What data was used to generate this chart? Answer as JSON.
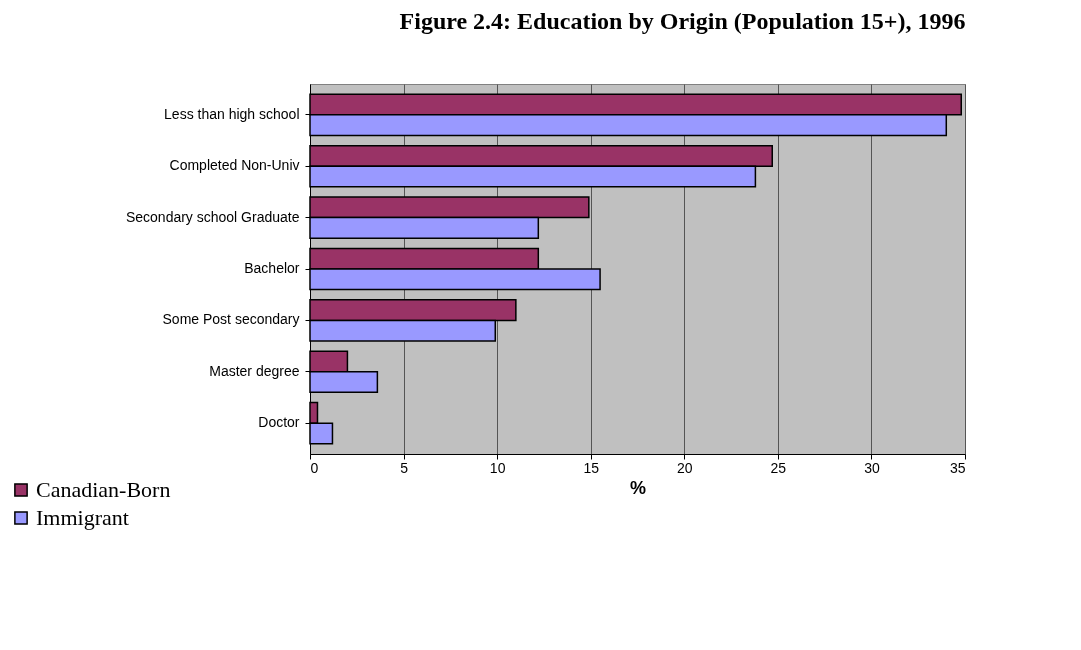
{
  "chart_data": {
    "type": "bar",
    "orientation": "horizontal",
    "title": "Figure 2.4: Education by Origin (Population 15+), 1996",
    "xlabel": "%",
    "categories": [
      "Less than high school",
      "Completed Non-Univ",
      "Secondary school Graduate",
      "Bachelor",
      "Some Post secondary",
      "Master degree",
      "Doctor"
    ],
    "series": [
      {
        "name": "Canadian-Born",
        "color": "#993366",
        "values": [
          34.8,
          24.7,
          14.9,
          12.2,
          11,
          2,
          0.4
        ]
      },
      {
        "name": "Immigrant",
        "color": "#9999ff",
        "values": [
          34,
          23.8,
          12.2,
          15.5,
          9.9,
          3.6,
          1.2
        ]
      }
    ],
    "xlim": [
      0,
      35
    ],
    "xticks": [
      0,
      5,
      10,
      15,
      20,
      25,
      30,
      35
    ],
    "grid": "x",
    "legend": "bottom left"
  }
}
